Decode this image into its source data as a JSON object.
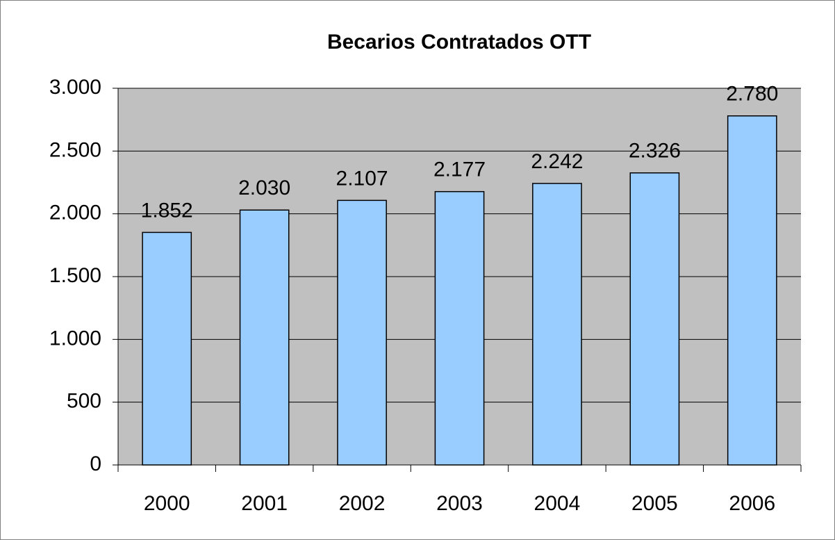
{
  "chart_data": {
    "type": "bar",
    "title": "Becarios Contratados OTT",
    "categories": [
      "2000",
      "2001",
      "2002",
      "2003",
      "2004",
      "2005",
      "2006"
    ],
    "values": [
      1852,
      2030,
      2107,
      2177,
      2242,
      2326,
      2780
    ],
    "value_labels": [
      "1.852",
      "2.030",
      "2.107",
      "2.177",
      "2.242",
      "2.326",
      "2.780"
    ],
    "color": "#99ccff",
    "ylim": [
      0,
      3000
    ],
    "yticks": [
      0,
      500,
      {
        "value": 1000,
        "label": "1.000"
      },
      {
        "value": 1500,
        "label": "1.500"
      },
      {
        "value": 2000,
        "label": "2.000"
      },
      {
        "value": 2500,
        "label": "2.500"
      },
      {
        "value": 3000,
        "label": "3.000"
      }
    ],
    "grid": true
  }
}
